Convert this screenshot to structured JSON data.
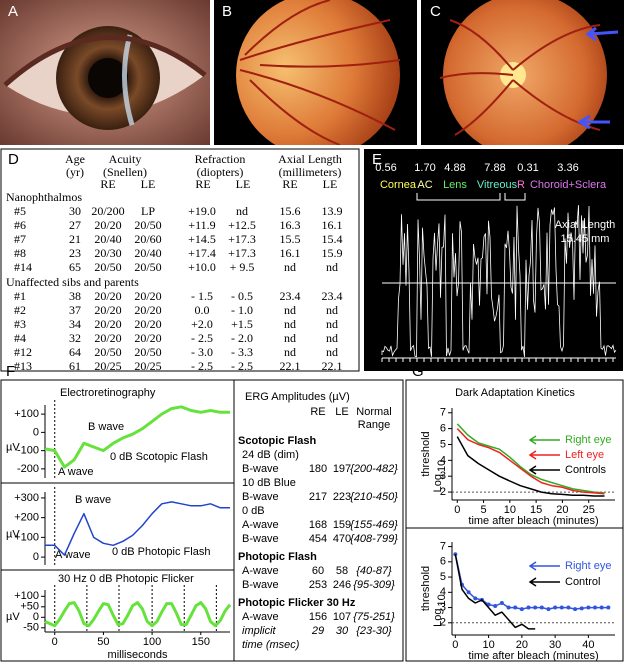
{
  "panel_labels": [
    "A",
    "B",
    "C",
    "D",
    "E",
    "F",
    "G"
  ],
  "table": {
    "headers": [
      "Age",
      "Acuity",
      "Refraction",
      "Axial Length"
    ],
    "units": [
      "(yr)",
      "(Snellen)",
      "(diopters)",
      "(millimeters)"
    ],
    "subheaders": [
      "RE",
      "LE",
      "RE",
      "LE",
      "RE",
      "LE"
    ],
    "groups": [
      {
        "title": "Nanophthalmos",
        "rows": [
          [
            "#5",
            "30",
            "20/200",
            "LP",
            "+19.0",
            "nd",
            "15.6",
            "13.9"
          ],
          [
            "#6",
            "27",
            "20/20",
            "20/50",
            "+11.9",
            "+12.5",
            "16.3",
            "16.1"
          ],
          [
            "#7",
            "21",
            "20/40",
            "20/60",
            "+14.5",
            "+17.3",
            "15.5",
            "15.4"
          ],
          [
            "#8",
            "23",
            "20/30",
            "20/40",
            "+17.4",
            "+17.3",
            "16.1",
            "15.9"
          ],
          [
            "#14",
            "65",
            "20/50",
            "20/50",
            "+10.0",
            "+ 9.5",
            "nd",
            "nd"
          ]
        ]
      },
      {
        "title": "Unaffected sibs and parents",
        "rows": [
          [
            "#1",
            "38",
            "20/20",
            "20/20",
            "- 1.5",
            "- 0.5",
            "23.4",
            "23.4"
          ],
          [
            "#2",
            "37",
            "20/20",
            "20/20",
            "0.0",
            "- 1.0",
            "nd",
            "nd"
          ],
          [
            "#3",
            "34",
            "20/20",
            "20/20",
            "+2.0",
            "+1.5",
            "nd",
            "nd"
          ],
          [
            "#4",
            "32",
            "20/20",
            "20/20",
            "- 2.5",
            "- 2.0",
            "nd",
            "nd"
          ],
          [
            "#12",
            "64",
            "20/50",
            "20/50",
            "- 3.0",
            "- 3.3",
            "nd",
            "nd"
          ],
          [
            "#13",
            "61",
            "20/25",
            "20/25",
            "- 2.5",
            "- 2.5",
            "22.1",
            "22.1"
          ]
        ]
      }
    ]
  },
  "ultrasound": {
    "segments": [
      {
        "length": "0.56",
        "label": "Cornea",
        "color": "#ffff55"
      },
      {
        "length": "1.70",
        "label": "AC",
        "color": "#ffffaa"
      },
      {
        "length": "4.88",
        "label": "Lens",
        "color": "#66ee66"
      },
      {
        "length": "7.88",
        "label": "Vitreous",
        "color": "#66eecc"
      },
      {
        "length": "0.31",
        "label": "R",
        "color": "#ff77cc"
      },
      {
        "length": "3.36",
        "label": "Choroid+Sclera",
        "color": "#dd77ee"
      }
    ],
    "axial_length_label": "Axial Length",
    "axial_length": "15.45 mm"
  },
  "erg_amplitudes": {
    "title": "ERG Amplitudes (µV)",
    "columns": [
      "RE",
      "LE"
    ],
    "range_header": [
      "Normal",
      "Range"
    ],
    "rows": [
      {
        "heading": "Scotopic Flash"
      },
      {
        "sub": "24 dB (dim)"
      },
      {
        "cells": [
          "B-wave",
          "180",
          "197",
          "{200-482}"
        ]
      },
      {
        "sub": "10 dB Blue"
      },
      {
        "cells": [
          "B-wave",
          "217",
          "223",
          "{210-450}"
        ]
      },
      {
        "sub": "0 dB"
      },
      {
        "cells": [
          "A-wave",
          "168",
          "159",
          "{155-469}"
        ]
      },
      {
        "cells": [
          "B-wave",
          "454",
          "470",
          "{408-799}"
        ]
      },
      {
        "heading": "Photopic Flash"
      },
      {
        "cells": [
          "A-wave",
          "60",
          "58",
          "{40-87}"
        ]
      },
      {
        "cells": [
          "B-wave",
          "253",
          "246",
          "{95-309}"
        ]
      },
      {
        "heading": "Photopic Flicker  30 Hz"
      },
      {
        "cells": [
          "A-wave",
          "156",
          "107",
          "{75-251}"
        ]
      },
      {
        "cells": [
          "implicit",
          "29",
          "30",
          "{23-30}"
        ]
      },
      {
        "sub": "time (msec)"
      }
    ]
  },
  "chart_data": [
    {
      "type": "line",
      "title": "Electroretinography",
      "y_unit": "µV",
      "annotations": [
        "B wave",
        "A wave",
        "0 dB Scotopic Flash"
      ],
      "color": "#66e23c",
      "x": [
        -10,
        0,
        10,
        20,
        30,
        40,
        50,
        60,
        70,
        80,
        90,
        100,
        110,
        120,
        130,
        140,
        150,
        160,
        170,
        180
      ],
      "values": [
        -90,
        -100,
        -190,
        -150,
        -60,
        -80,
        -100,
        -60,
        -30,
        -10,
        20,
        60,
        100,
        130,
        140,
        120,
        110,
        120,
        110,
        110
      ],
      "xlim": [
        -10,
        180
      ],
      "ylim": [
        -250,
        150
      ],
      "yticks": [
        {
          "value": 100,
          "label": "+100"
        },
        0,
        -100,
        -200
      ]
    },
    {
      "type": "line",
      "y_unit": "µV",
      "annotations": [
        "B wave",
        "A wave",
        "0 dB Photopic Flash"
      ],
      "color": "#2244cc",
      "x": [
        -10,
        0,
        10,
        20,
        30,
        40,
        50,
        60,
        70,
        80,
        90,
        100,
        110,
        120,
        130,
        140,
        150,
        160,
        170,
        180
      ],
      "values": [
        60,
        60,
        10,
        120,
        220,
        100,
        70,
        60,
        80,
        110,
        160,
        220,
        270,
        280,
        270,
        260,
        260,
        270,
        250,
        250
      ],
      "xlim": [
        -10,
        180
      ],
      "ylim": [
        -40,
        330
      ],
      "yticks": [
        {
          "value": 300,
          "label": "+300"
        },
        {
          "value": 200,
          "label": "+200"
        },
        {
          "value": 100,
          "label": "+100"
        },
        0
      ]
    },
    {
      "type": "line",
      "title": "30 Hz 0 dB Photopic Flicker",
      "y_unit": "µV",
      "x_label": "milliseconds",
      "color": "#66e23c",
      "x": [
        -10,
        -5,
        0,
        5,
        10,
        15,
        20,
        25,
        30,
        35,
        40,
        45,
        50,
        55,
        60,
        65,
        70,
        75,
        80,
        85,
        90,
        95,
        100,
        105,
        110,
        115,
        120,
        125,
        130,
        135,
        140,
        145,
        150,
        155,
        160,
        165,
        170,
        175,
        180
      ],
      "values": [
        -20,
        -30,
        -40,
        -10,
        30,
        65,
        70,
        30,
        -30,
        -40,
        -10,
        30,
        65,
        60,
        10,
        -35,
        -30,
        10,
        55,
        70,
        40,
        -20,
        -40,
        -20,
        25,
        65,
        65,
        20,
        -35,
        -35,
        10,
        55,
        70,
        40,
        -20,
        -40,
        -15,
        30,
        60
      ],
      "xlim": [
        -10,
        180
      ],
      "ylim": [
        -70,
        130
      ],
      "yticks": [
        {
          "value": 100,
          "label": "+100"
        },
        {
          "value": 50,
          "label": "+50"
        },
        0,
        -50
      ],
      "xticks": [
        0,
        50,
        100,
        150
      ]
    },
    {
      "type": "line",
      "title": "Dark Adaptation Kinetics",
      "y_label": [
        "Log",
        "10",
        "threshold"
      ],
      "x_label": "time  after bleach (minutes)",
      "series": [
        {
          "name": "Right eye",
          "color": "#33aa22",
          "x": [
            0,
            2,
            4,
            6,
            8,
            10,
            12,
            14,
            16,
            18,
            20,
            22,
            24,
            26,
            28
          ],
          "values": [
            6.3,
            5.6,
            5.1,
            4.9,
            4.7,
            4.2,
            3.6,
            3.1,
            2.8,
            2.6,
            2.4,
            2.2,
            2.1,
            2.0,
            1.95
          ]
        },
        {
          "name": "Left eye",
          "color": "#ee2222",
          "x": [
            0,
            2,
            4,
            6,
            8,
            10,
            12,
            14,
            16,
            18,
            20,
            22,
            24,
            26,
            28
          ],
          "values": [
            6.0,
            5.3,
            5.0,
            4.8,
            4.5,
            4.0,
            3.5,
            3.0,
            2.6,
            2.4,
            2.3,
            2.1,
            2.0,
            1.95,
            1.9
          ]
        },
        {
          "name": "Controls",
          "color": "#000000",
          "x": [
            0,
            2,
            4,
            6,
            8,
            10,
            12,
            14,
            16,
            18,
            20,
            22,
            24,
            26,
            28
          ],
          "values": [
            5.5,
            4.3,
            3.8,
            3.4,
            3.0,
            2.7,
            2.4,
            2.2,
            2.0,
            1.9,
            1.85,
            1.8,
            1.8,
            1.75,
            1.75
          ]
        }
      ],
      "xlim": [
        -1,
        30
      ],
      "ylim": [
        1.5,
        7.3
      ],
      "yticks": [
        2,
        3,
        4,
        5,
        6,
        7
      ],
      "xticks": [
        0,
        5,
        10,
        15,
        20,
        25
      ]
    },
    {
      "type": "line",
      "y_label": [
        "Log",
        "10",
        "threshold"
      ],
      "x_label": "time  after bleach (minutes)",
      "series": [
        {
          "name": "Right eye",
          "color": "#3355dd",
          "x": [
            0,
            2,
            4,
            6,
            8,
            10,
            12,
            14,
            16,
            18,
            20,
            22,
            24,
            26,
            28,
            30,
            32,
            34,
            36,
            38,
            40,
            42,
            44,
            46
          ],
          "values": [
            6.5,
            4.5,
            4.0,
            3.6,
            3.5,
            3.2,
            3.1,
            3.3,
            3.0,
            3.0,
            2.9,
            3.0,
            3.0,
            3.0,
            2.9,
            3.0,
            3.0,
            3.0,
            2.9,
            2.95,
            3.0,
            3.0,
            3.0,
            3.0
          ]
        },
        {
          "name": "Control",
          "color": "#000000",
          "x": [
            0,
            2,
            4,
            6,
            8,
            10,
            12,
            14,
            16,
            18,
            20,
            22,
            24
          ],
          "values": [
            6.5,
            4.2,
            3.6,
            3.3,
            3.5,
            3.0,
            2.5,
            2.7,
            2.2,
            1.7,
            1.9,
            1.6,
            1.6
          ]
        }
      ],
      "xlim": [
        -1,
        48
      ],
      "ylim": [
        1.2,
        7.3
      ],
      "yticks": [
        2,
        3,
        4,
        5,
        6,
        7
      ],
      "xticks": [
        0,
        10,
        20,
        30,
        40
      ]
    }
  ]
}
